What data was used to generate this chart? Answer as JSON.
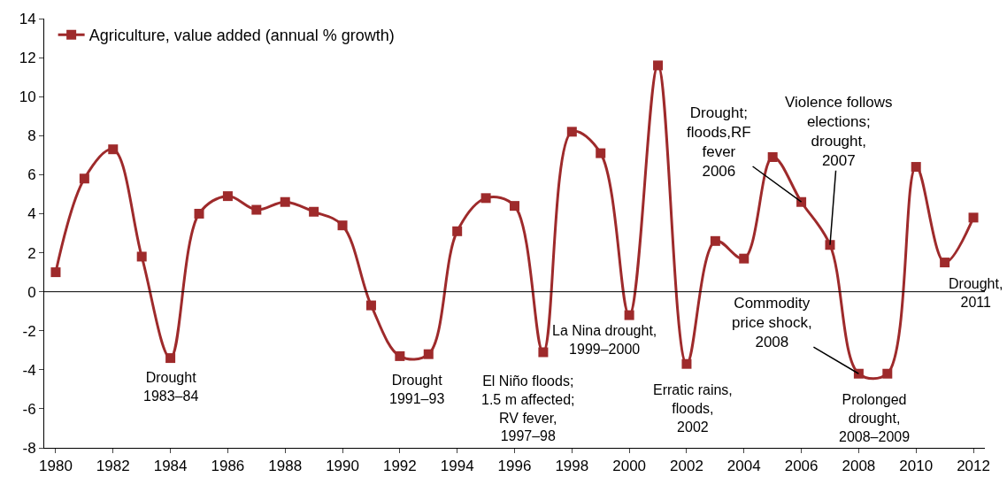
{
  "chart_data": {
    "type": "line",
    "x": [
      1980,
      1981,
      1982,
      1983,
      1984,
      1985,
      1986,
      1987,
      1988,
      1989,
      1990,
      1991,
      1992,
      1993,
      1994,
      1995,
      1996,
      1997,
      1998,
      1999,
      2000,
      2001,
      2002,
      2003,
      2004,
      2005,
      2006,
      2007,
      2008,
      2009,
      2010,
      2011,
      2012
    ],
    "series": [
      {
        "name": "Agriculture, value added (annual % growth)",
        "color": "#9e2a2b",
        "values": [
          1.0,
          5.8,
          7.3,
          1.8,
          -3.4,
          4.0,
          4.9,
          4.2,
          4.6,
          4.1,
          3.4,
          -0.7,
          -3.3,
          -3.2,
          3.1,
          4.8,
          4.4,
          -3.1,
          8.2,
          7.1,
          -1.2,
          11.6,
          -3.7,
          2.6,
          1.7,
          6.9,
          4.6,
          2.4,
          -4.2,
          -4.2,
          6.4,
          1.5,
          3.8
        ]
      }
    ],
    "xlim": [
      1979.6,
      2012.4
    ],
    "xticks": [
      1980,
      1982,
      1984,
      1986,
      1988,
      1990,
      1992,
      1994,
      1996,
      1998,
      2000,
      2002,
      2004,
      2006,
      2008,
      2010,
      2012
    ],
    "ylim": [
      -8,
      14
    ],
    "yticks": [
      -8,
      -6,
      -4,
      -2,
      0,
      2,
      4,
      6,
      8,
      10,
      12,
      14
    ],
    "ref_lines": [
      {
        "axis": "y",
        "value": 0,
        "color": "#000000"
      }
    ],
    "legend": "top left",
    "marker": "square",
    "line_style": "solid",
    "annotations": [
      {
        "text": "Drought\n1983–84",
        "x": 1984,
        "y": -3.4
      },
      {
        "text": "Drought\n1991–93",
        "x": 1993,
        "y": -3.2
      },
      {
        "text": "El Niño floods;\n1.5 m affected;\nRV fever,\n1997–98",
        "x": 1997,
        "y": -3.1
      },
      {
        "text": "La Nina drought,\n1999–2000",
        "x": 2000,
        "y": -1.2
      },
      {
        "text": "Erratic rains,\nfloods,\n2002",
        "x": 2002,
        "y": -3.7
      },
      {
        "text": "Drought;\nfloods,RF\nfever\n2006",
        "x": 2006,
        "y": 4.6
      },
      {
        "text": "Violence follows\nelections;\ndrought,\n2007",
        "x": 2007,
        "y": 2.4
      },
      {
        "text": "Commodity\nprice shock,\n2008",
        "x": 2008,
        "y": -4.2
      },
      {
        "text": "Prolonged\ndrought,\n2008–2009",
        "x": 2009,
        "y": -4.2
      },
      {
        "text": "Drought,\n2011",
        "x": 2011,
        "y": 1.5
      }
    ]
  }
}
